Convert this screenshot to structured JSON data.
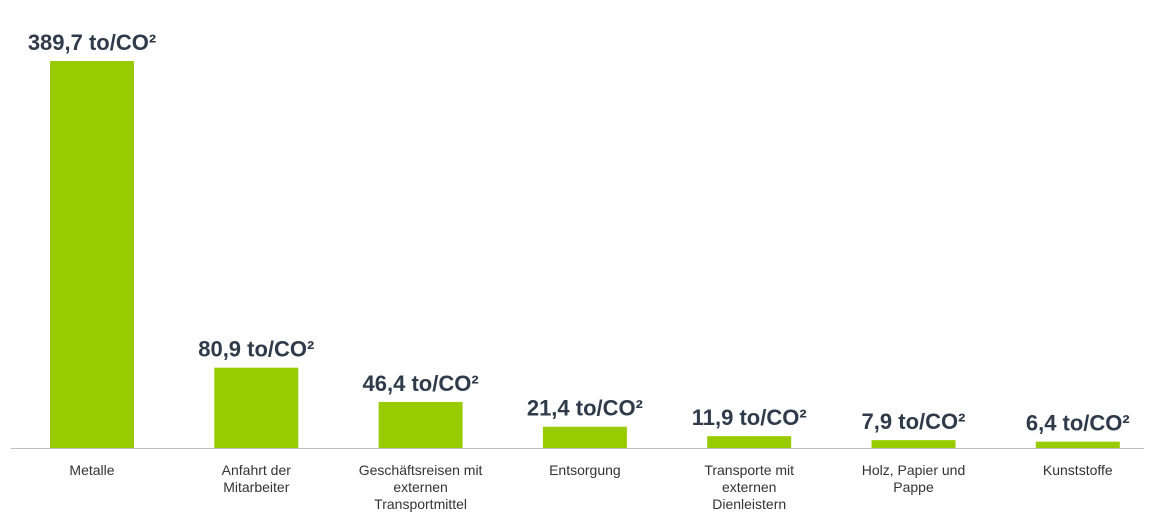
{
  "chart_data": {
    "type": "bar",
    "title": "",
    "xlabel": "",
    "ylabel": "",
    "categories": [
      "Metalle",
      "Anfahrt der Mitarbeiter",
      "Geschäftsreisen mit externen Transportmittel",
      "Entsorgung",
      "Transporte mit externen Dienleistern",
      "Holz, Papier und Pappe",
      "Kunststoffe"
    ],
    "category_lines": [
      [
        "Metalle"
      ],
      [
        "Anfahrt der",
        "Mitarbeiter"
      ],
      [
        "Geschäftsreisen mit",
        "externen",
        "Transportmittel"
      ],
      [
        "Entsorgung"
      ],
      [
        "Transporte mit",
        "externen",
        "Dienleistern"
      ],
      [
        "Holz, Papier und",
        "Pappe"
      ],
      [
        "Kunststoffe"
      ]
    ],
    "values": [
      389.7,
      80.9,
      46.4,
      21.4,
      11.9,
      7.9,
      6.4
    ],
    "value_labels": [
      "389,7 to/CO²",
      "80,9 to/CO²",
      "46,4 to/CO²",
      "21,4 to/CO²",
      "11,9 to/CO²",
      "7,9 to/CO²",
      "6,4 to/CO²"
    ],
    "ylim": [
      0,
      389.7
    ],
    "grid": false,
    "legend": "none",
    "bar_color": "#99cc00",
    "axis_color": "#bfbfbf",
    "value_label_color": "#2f3a4a",
    "category_label_color": "#333333"
  }
}
